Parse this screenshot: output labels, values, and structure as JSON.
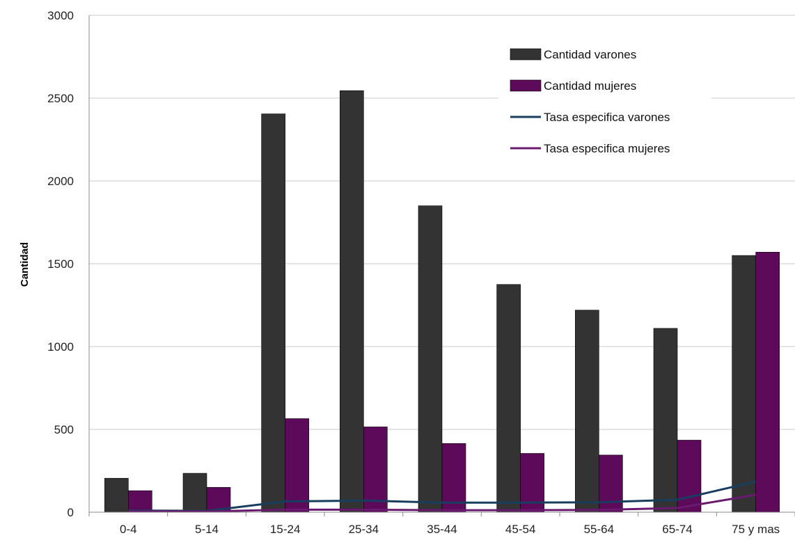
{
  "chart_data": {
    "type": "bar",
    "title": "",
    "xlabel": "",
    "ylabel": "Cantidad",
    "ylim": [
      0,
      3000
    ],
    "yticks": [
      0,
      500,
      1000,
      1500,
      2000,
      2500,
      3000
    ],
    "grid": true,
    "legend_position": "top-right",
    "categories": [
      "0-4",
      "5-14",
      "15-24",
      "25-34",
      "35-44",
      "45-54",
      "55-64",
      "65-74",
      "75 y mas"
    ],
    "series": [
      {
        "name": "Cantidad varones",
        "kind": "bar",
        "color": "#333333",
        "values": [
          205,
          235,
          2405,
          2545,
          1850,
          1375,
          1220,
          1110,
          1550
        ]
      },
      {
        "name": "Cantidad mujeres",
        "kind": "bar",
        "color": "#5e0a5a",
        "values": [
          130,
          150,
          565,
          515,
          415,
          355,
          345,
          435,
          1570
        ]
      },
      {
        "name": "Tasa especifica varones",
        "kind": "line",
        "color": "#173e5e",
        "values": [
          10,
          8,
          65,
          70,
          58,
          58,
          60,
          75,
          185
        ]
      },
      {
        "name": "Tasa especifica mujeres",
        "kind": "line",
        "color": "#6a1a6e",
        "values": [
          5,
          4,
          15,
          15,
          12,
          12,
          14,
          25,
          105
        ]
      }
    ]
  }
}
